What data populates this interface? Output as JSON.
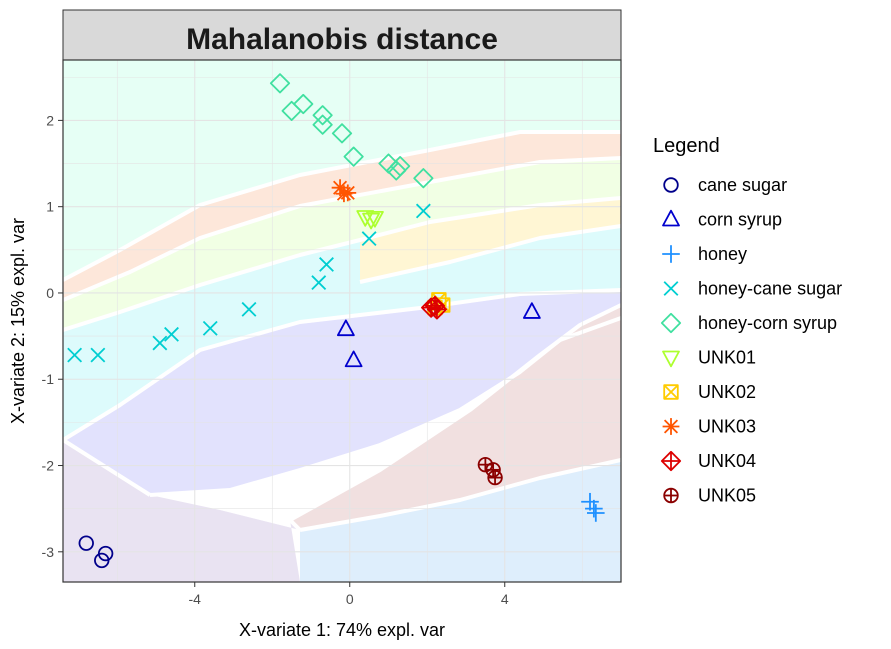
{
  "chart_data": {
    "type": "scatter",
    "title": "Mahalanobis distance",
    "xlabel": "X-variate 1: 74% expl. var",
    "ylabel": "X-variate 2: 15% expl. var",
    "xlim": [
      -7.4,
      7.0
    ],
    "ylim": [
      -3.35,
      2.7
    ],
    "xticks": [
      -4,
      0,
      4
    ],
    "yticks": [
      -3,
      -2,
      -1,
      0,
      1,
      2
    ],
    "xtick_labels": [
      "-4",
      "0",
      "4"
    ],
    "ytick_labels": [
      "-3",
      "-2",
      "-1",
      "0",
      "1",
      "2"
    ],
    "grid": true,
    "legend_title": "Legend",
    "legend_position": "right",
    "series": [
      {
        "name": "cane sugar",
        "color": "#00008B",
        "marker": "circle",
        "points": [
          [
            -6.8,
            -2.9
          ],
          [
            -6.3,
            -3.02
          ],
          [
            -6.4,
            -3.1
          ]
        ]
      },
      {
        "name": "corn syrup",
        "color": "#0000CD",
        "marker": "triangle-up",
        "points": [
          [
            -0.1,
            -0.42
          ],
          [
            0.1,
            -0.78
          ],
          [
            4.7,
            -0.22
          ]
        ]
      },
      {
        "name": "honey",
        "color": "#1E90FF",
        "marker": "plus",
        "points": [
          [
            6.2,
            -2.42
          ],
          [
            6.3,
            -2.5
          ],
          [
            6.35,
            -2.55
          ]
        ]
      },
      {
        "name": "honey-cane sugar",
        "color": "#00CED1",
        "marker": "x",
        "points": [
          [
            -7.1,
            -0.72
          ],
          [
            -6.5,
            -0.72
          ],
          [
            -4.9,
            -0.58
          ],
          [
            -4.6,
            -0.48
          ],
          [
            -3.6,
            -0.41
          ],
          [
            -2.6,
            -0.19
          ],
          [
            -0.8,
            0.12
          ],
          [
            -0.6,
            0.33
          ],
          [
            0.5,
            0.63
          ],
          [
            1.9,
            0.95
          ]
        ]
      },
      {
        "name": "honey-corn syrup",
        "color": "#40E0A0",
        "marker": "diamond",
        "points": [
          [
            -1.8,
            2.43
          ],
          [
            -1.5,
            2.11
          ],
          [
            -1.2,
            2.19
          ],
          [
            -0.7,
            2.06
          ],
          [
            -0.7,
            1.95
          ],
          [
            -0.2,
            1.85
          ],
          [
            0.1,
            1.58
          ],
          [
            1.0,
            1.5
          ],
          [
            1.2,
            1.42
          ],
          [
            1.3,
            1.47
          ],
          [
            1.9,
            1.33
          ]
        ]
      },
      {
        "name": "UNK01",
        "color": "#ADFF2F",
        "marker": "triangle-down",
        "points": [
          [
            0.4,
            0.88
          ],
          [
            0.55,
            0.85
          ],
          [
            0.65,
            0.87
          ]
        ]
      },
      {
        "name": "UNK02",
        "color": "#FFCC00",
        "marker": "square-x",
        "points": [
          [
            2.3,
            -0.08
          ],
          [
            2.4,
            -0.14
          ],
          [
            2.2,
            -0.17
          ]
        ]
      },
      {
        "name": "UNK03",
        "color": "#FF5500",
        "marker": "asterisk",
        "points": [
          [
            -0.25,
            1.22
          ],
          [
            -0.15,
            1.15
          ],
          [
            -0.05,
            1.16
          ]
        ]
      },
      {
        "name": "UNK04",
        "color": "#DD0000",
        "marker": "diamond-plus",
        "points": [
          [
            2.1,
            -0.17
          ],
          [
            2.2,
            -0.15
          ],
          [
            2.25,
            -0.19
          ]
        ]
      },
      {
        "name": "UNK05",
        "color": "#8B0000",
        "marker": "circle-plus",
        "points": [
          [
            3.5,
            -1.99
          ],
          [
            3.7,
            -2.05
          ],
          [
            3.75,
            -2.14
          ]
        ]
      }
    ]
  }
}
